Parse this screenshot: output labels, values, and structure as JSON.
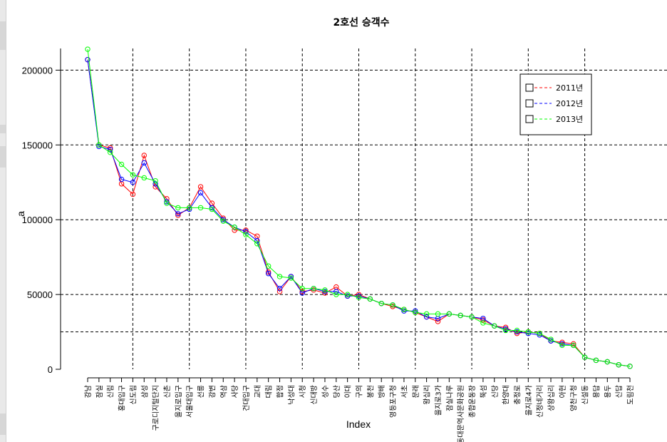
{
  "chart_data": {
    "type": "line",
    "title": "2호선 승객수",
    "xlabel": "Index",
    "ylabel": "a",
    "ylim": [
      0,
      215000
    ],
    "yticks": [
      0,
      50000,
      100000,
      150000,
      200000
    ],
    "ytick_labels": [
      "0",
      "50000",
      "100000",
      "150000",
      "200000"
    ],
    "grid": "dashed lines at x ticks 5, 10, 15, 20, 25, 30, 35, 40, 45 and y ticks 25000, 50000, 100000, 150000, 200000",
    "legend_position": "top-right",
    "categories": [
      "강남",
      "잠실",
      "신림",
      "홍대입구",
      "신도림",
      "삼성",
      "구로디지털단지",
      "신촌",
      "을지로입구",
      "서울대입구",
      "선릉",
      "강변",
      "역삼",
      "사당",
      "건대입구",
      "교대",
      "대림",
      "합정",
      "낙성대",
      "시청",
      "신대방",
      "성수",
      "당산",
      "이대",
      "구의",
      "봉천",
      "방배",
      "영등포구청",
      "서초",
      "문래",
      "왕십리",
      "을지로3가",
      "잠실나루",
      "동대문역사문화공원",
      "종합운동장",
      "뚝섬",
      "신당",
      "한양대",
      "충정로",
      "을지로4가",
      "신정네거리",
      "상왕십리",
      "아현",
      "양천구청",
      "신설동",
      "용답",
      "용두",
      "신답",
      "도림천"
    ],
    "series": [
      {
        "name": "2011년",
        "color": "#ff0000",
        "values": [
          207000,
          150000,
          148000,
          124000,
          117000,
          143000,
          122000,
          114000,
          103000,
          108000,
          122000,
          111000,
          101000,
          93000,
          93000,
          89000,
          65000,
          52000,
          62000,
          52000,
          53000,
          51000,
          55000,
          49000,
          50000,
          47000,
          44000,
          42000,
          40000,
          38000,
          35000,
          32000,
          37000,
          36000,
          35000,
          33000,
          29000,
          28000,
          24000,
          25000,
          24000,
          19000,
          18000,
          17000,
          8000,
          6000,
          5000,
          3000,
          2000
        ]
      },
      {
        "name": "2012년",
        "color": "#0000ff",
        "values": [
          207000,
          149000,
          147000,
          127000,
          125000,
          138000,
          124000,
          112000,
          104000,
          107000,
          118000,
          108000,
          100000,
          95000,
          92000,
          86000,
          64000,
          54000,
          62000,
          51000,
          54000,
          52000,
          52000,
          49000,
          49000,
          47000,
          44000,
          43000,
          39000,
          39000,
          35000,
          34000,
          37000,
          36000,
          35000,
          34000,
          29000,
          27000,
          25000,
          24000,
          23000,
          19000,
          17000,
          16000,
          8000,
          6000,
          5000,
          3000,
          2000
        ]
      },
      {
        "name": "2013년",
        "color": "#00ff00",
        "values": [
          214000,
          150000,
          145000,
          137000,
          130000,
          128000,
          126000,
          111000,
          108000,
          108000,
          108000,
          107000,
          99000,
          95000,
          90000,
          84000,
          69000,
          62000,
          61000,
          54000,
          54000,
          53000,
          50000,
          50000,
          48000,
          47000,
          44000,
          43000,
          40000,
          38000,
          37000,
          37000,
          37000,
          36000,
          35000,
          31000,
          29000,
          26000,
          26000,
          25000,
          24000,
          20000,
          16000,
          16000,
          8000,
          6000,
          5000,
          3000,
          2000
        ]
      }
    ]
  }
}
